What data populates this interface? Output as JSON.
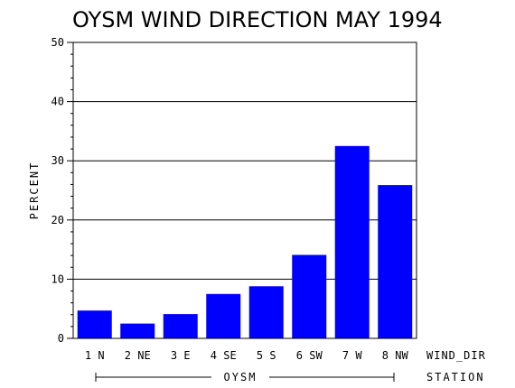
{
  "chart_data": {
    "type": "bar",
    "title": "OYSM WIND DIRECTION MAY 1994",
    "ylabel": "PERCENT",
    "xlabel": "WIND_DIR",
    "group_axis_label": "STATION",
    "group": "OYSM",
    "categories": [
      "1 N",
      "2 NE",
      "3 E",
      "4 SE",
      "5 S",
      "6 SW",
      "7 W",
      "8 NW"
    ],
    "values": [
      4.7,
      2.5,
      4.1,
      7.5,
      8.8,
      14.1,
      32.5,
      25.9
    ],
    "ylim": [
      0,
      50
    ],
    "yticks": [
      "0",
      "10",
      "20",
      "30",
      "40",
      "50"
    ],
    "grid": true,
    "colors": {
      "bar": "#0000ff",
      "axis": "#000000"
    }
  }
}
